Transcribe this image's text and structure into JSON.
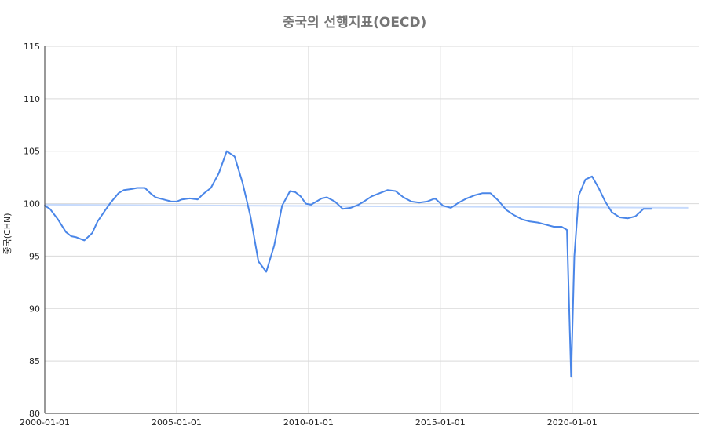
{
  "chart_data": {
    "type": "line",
    "title": "중국의 선행지표(OECD)",
    "xlabel": "",
    "ylabel": "중국(CHN)",
    "ylim": [
      80,
      115
    ],
    "yticks": [
      80,
      85,
      90,
      95,
      100,
      105,
      110,
      115
    ],
    "xticks": [
      "2000-01-01",
      "2005-01-01",
      "2010-01-01",
      "2015-01-01",
      "2020-01-01"
    ],
    "grid": true,
    "series": [
      {
        "name": "",
        "color": "#4a86e8",
        "x": [
          2000.0,
          2000.2,
          2000.5,
          2000.8,
          2001.0,
          2001.2,
          2001.5,
          2001.8,
          2002.0,
          2002.3,
          2002.5,
          2002.8,
          2003.0,
          2003.3,
          2003.5,
          2003.8,
          2004.0,
          2004.2,
          2004.5,
          2004.8,
          2005.0,
          2005.2,
          2005.5,
          2005.8,
          2006.0,
          2006.3,
          2006.6,
          2006.9,
          2007.2,
          2007.5,
          2007.8,
          2008.1,
          2008.4,
          2008.7,
          2009.0,
          2009.3,
          2009.5,
          2009.7,
          2009.9,
          2010.1,
          2010.3,
          2010.5,
          2010.7,
          2011.0,
          2011.3,
          2011.6,
          2011.9,
          2012.1,
          2012.4,
          2012.7,
          2013.0,
          2013.3,
          2013.6,
          2013.9,
          2014.2,
          2014.5,
          2014.8,
          2015.1,
          2015.4,
          2015.7,
          2016.0,
          2016.3,
          2016.6,
          2016.9,
          2017.2,
          2017.5,
          2017.8,
          2018.1,
          2018.4,
          2018.7,
          2019.0,
          2019.3,
          2019.6,
          2019.8,
          2019.96,
          2020.08,
          2020.25,
          2020.5,
          2020.75,
          2021.0,
          2021.25,
          2021.5,
          2021.8,
          2022.1,
          2022.4,
          2022.7,
          2023.0
        ],
        "y": [
          99.8,
          99.5,
          98.5,
          97.3,
          96.9,
          96.8,
          96.5,
          97.2,
          98.3,
          99.4,
          100.1,
          101.0,
          101.3,
          101.4,
          101.5,
          101.5,
          101.0,
          100.6,
          100.4,
          100.2,
          100.2,
          100.4,
          100.5,
          100.4,
          100.9,
          101.5,
          102.9,
          105.0,
          104.5,
          102.0,
          98.8,
          94.5,
          93.5,
          96.0,
          99.8,
          101.2,
          101.1,
          100.7,
          100.0,
          99.9,
          100.2,
          100.5,
          100.6,
          100.2,
          99.5,
          99.6,
          99.9,
          100.2,
          100.7,
          101.0,
          101.3,
          101.2,
          100.6,
          100.2,
          100.1,
          100.2,
          100.5,
          99.8,
          99.6,
          100.1,
          100.5,
          100.8,
          101.0,
          101.0,
          100.3,
          99.4,
          98.9,
          98.5,
          98.3,
          98.2,
          98.0,
          97.8,
          97.8,
          97.5,
          83.5,
          95.0,
          100.8,
          102.3,
          102.6,
          101.5,
          100.2,
          99.2,
          98.7,
          98.6,
          98.8,
          99.5,
          99.5
        ]
      }
    ],
    "reference_lines": [
      {
        "color": "#c6dafc",
        "y_start": 99.9,
        "y_end": 99.6
      }
    ]
  }
}
